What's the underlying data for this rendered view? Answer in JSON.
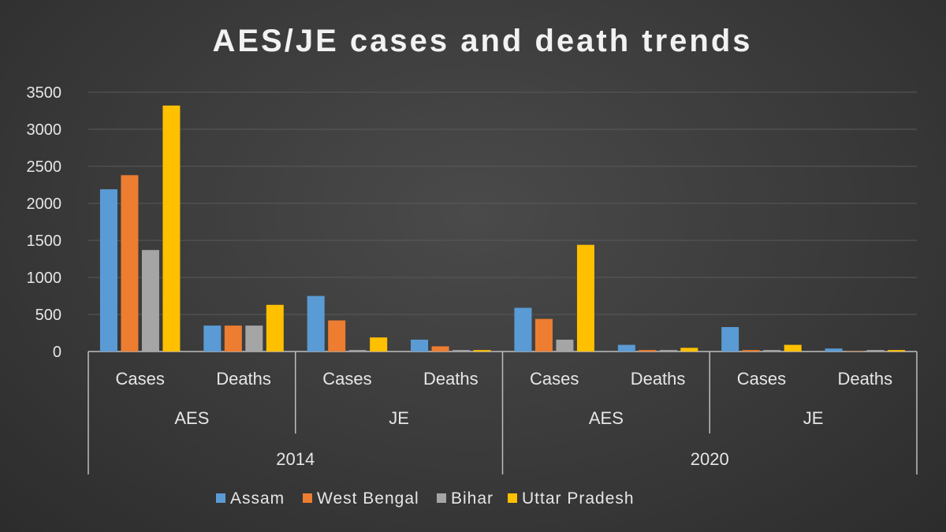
{
  "chart_data": {
    "type": "bar",
    "title": "AES/JE cases and death trends",
    "xlabel": "",
    "ylabel": "",
    "ylim": [
      0,
      3500
    ],
    "yticks": [
      0,
      500,
      1000,
      1500,
      2000,
      2500,
      3000,
      3500
    ],
    "grid": true,
    "legend_position": "bottom",
    "categories": [
      {
        "measure": "Cases",
        "disease": "AES",
        "year": "2014"
      },
      {
        "measure": "Deaths",
        "disease": "AES",
        "year": "2014"
      },
      {
        "measure": "Cases",
        "disease": "JE",
        "year": "2014"
      },
      {
        "measure": "Deaths",
        "disease": "JE",
        "year": "2014"
      },
      {
        "measure": "Cases",
        "disease": "AES",
        "year": "2020"
      },
      {
        "measure": "Deaths",
        "disease": "AES",
        "year": "2020"
      },
      {
        "measure": "Cases",
        "disease": "JE",
        "year": "2020"
      },
      {
        "measure": "Deaths",
        "disease": "JE",
        "year": "2020"
      }
    ],
    "series": [
      {
        "name": "Assam",
        "color": "#5b9bd5",
        "values": [
          2190,
          350,
          750,
          160,
          590,
          90,
          330,
          40
        ]
      },
      {
        "name": "West Bengal",
        "color": "#ed7d31",
        "values": [
          2380,
          350,
          420,
          70,
          440,
          20,
          20,
          5
        ]
      },
      {
        "name": "Bihar",
        "color": "#a5a5a5",
        "values": [
          1370,
          350,
          20,
          20,
          160,
          20,
          20,
          20
        ]
      },
      {
        "name": "Uttar Pradesh",
        "color": "#ffc000",
        "values": [
          3320,
          630,
          190,
          20,
          1440,
          50,
          90,
          20
        ]
      }
    ]
  }
}
